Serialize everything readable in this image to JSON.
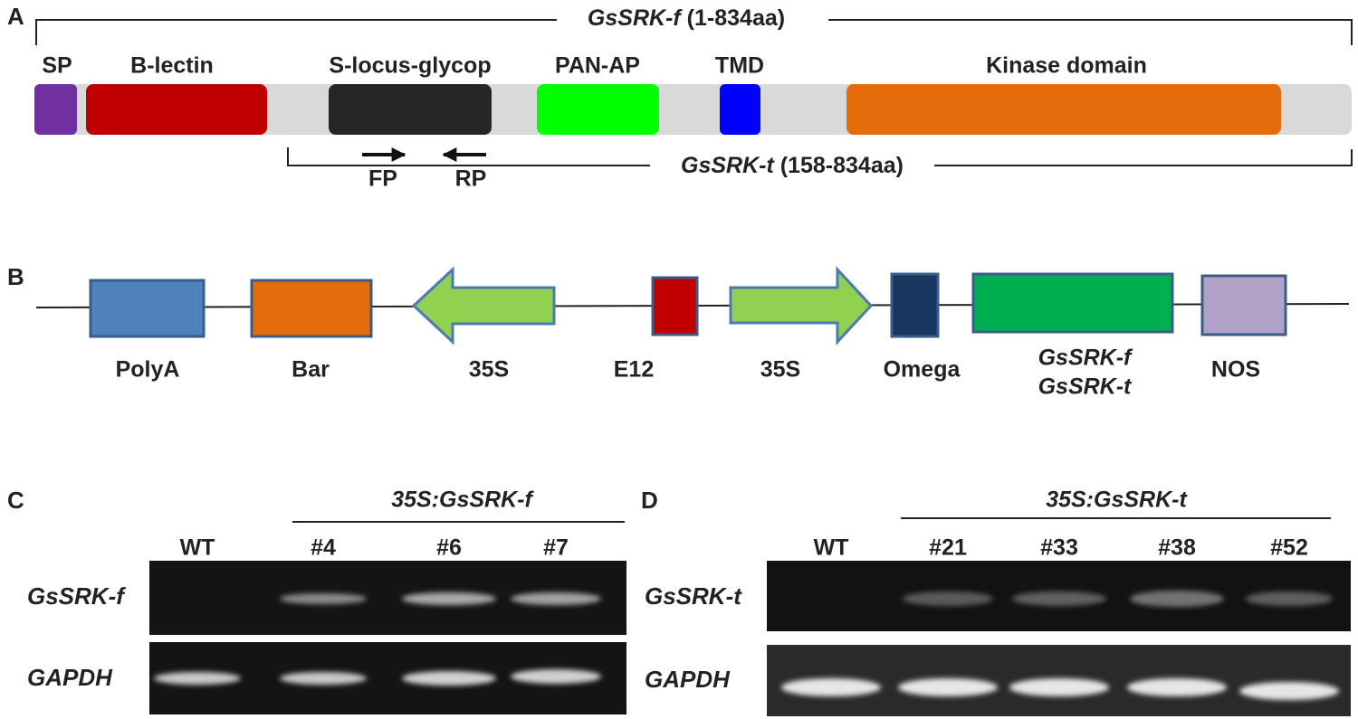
{
  "panel_a": {
    "label": "A",
    "full_gene": "GsSRK-f",
    "full_range": "(1-834aa)",
    "truncated_gene": "GsSRK-t",
    "truncated_range": "(158-834aa)",
    "domains": [
      "SP",
      "B-lectin",
      "S-locus-glycop",
      "PAN-AP",
      "TMD",
      "Kinase domain"
    ],
    "primers": [
      "FP",
      "RP"
    ]
  },
  "panel_b": {
    "label": "B",
    "elements": [
      "PolyA",
      "Bar",
      "35S",
      "E12",
      "35S",
      "Omega",
      "NOS"
    ],
    "gene_lines": [
      "GsSRK-f",
      "GsSRK-t"
    ]
  },
  "panel_c": {
    "label": "C",
    "construct": "35S:GsSRK-f",
    "lanes": [
      "WT",
      "#4",
      "#6",
      "#7"
    ],
    "rows": [
      "GsSRK-f",
      "GAPDH"
    ]
  },
  "panel_d": {
    "label": "D",
    "construct": "35S:GsSRK-t",
    "lanes": [
      "WT",
      "#21",
      "#33",
      "#38",
      "#52"
    ],
    "rows": [
      "GsSRK-t",
      "GAPDH"
    ]
  }
}
